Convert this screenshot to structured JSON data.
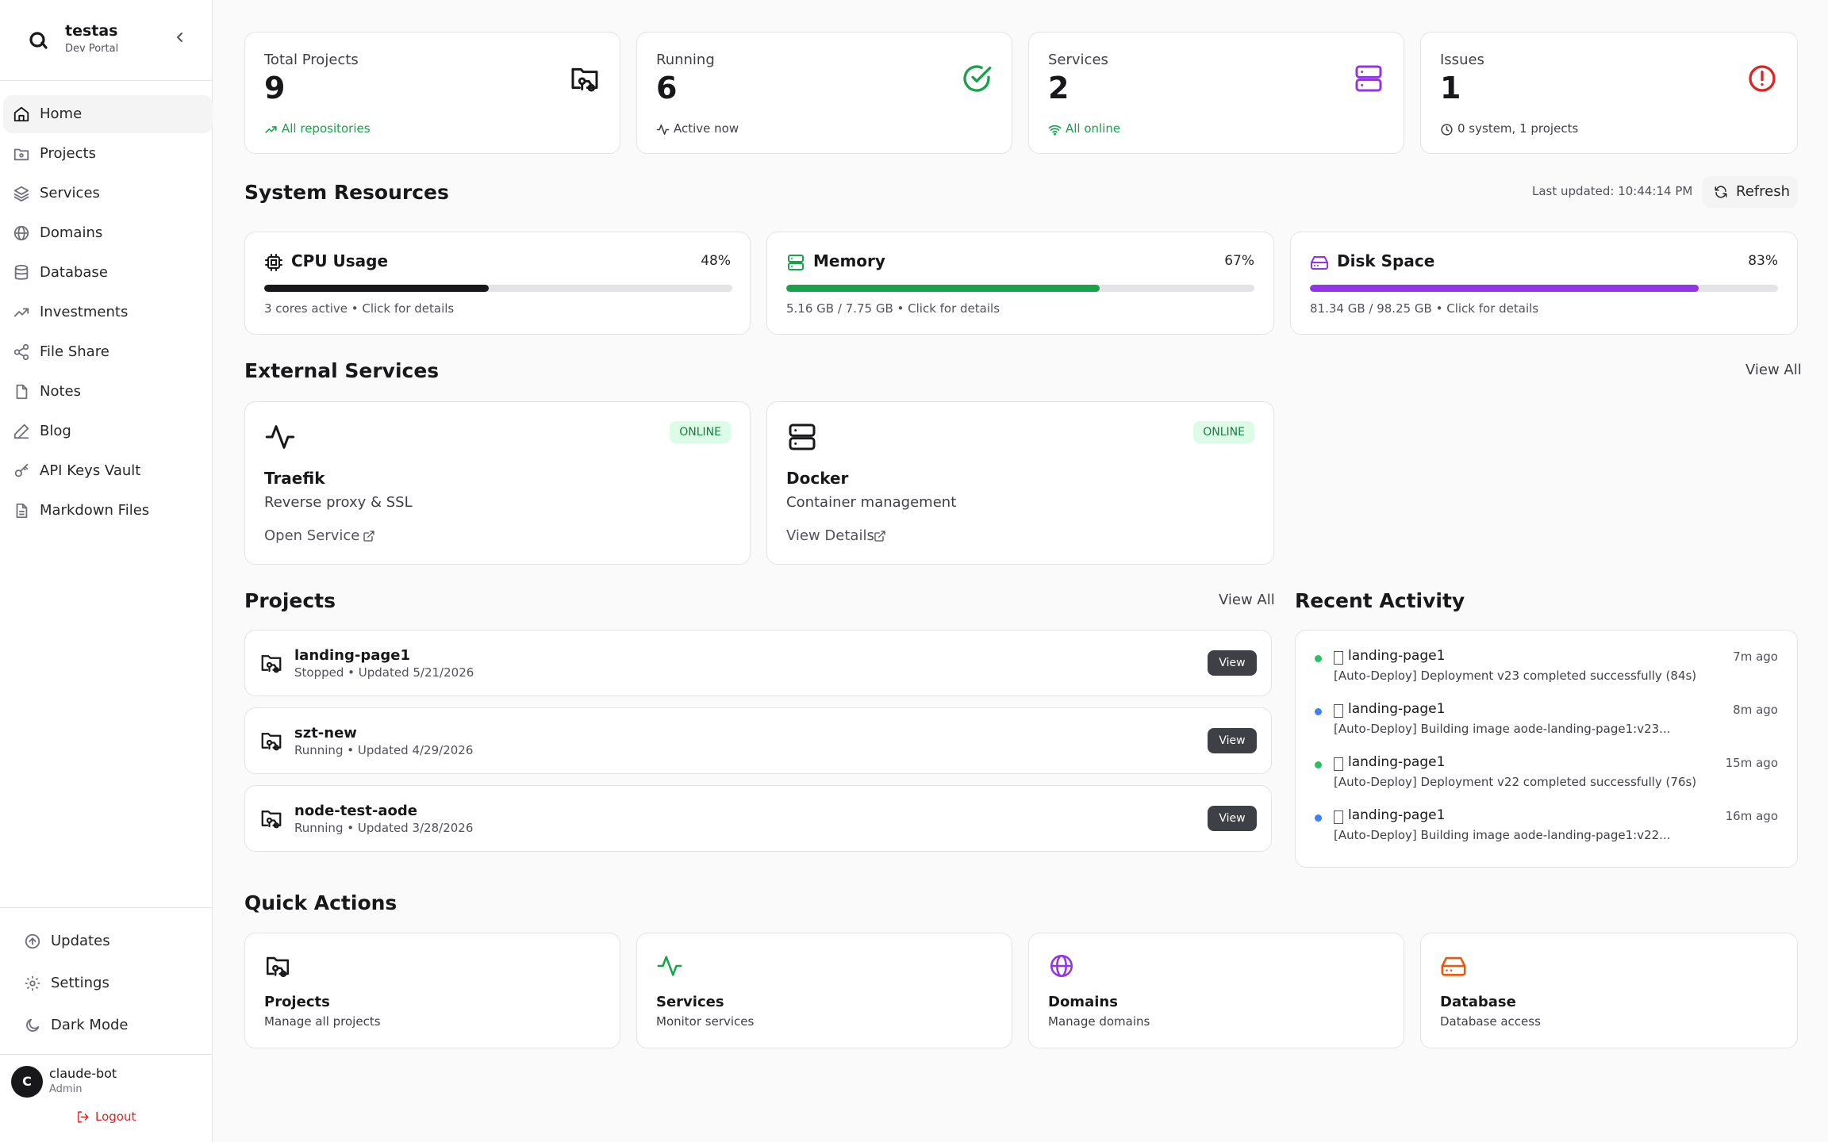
{
  "sidebar": {
    "brand_name": "testas",
    "brand_sub": "Dev Portal",
    "items": [
      {
        "label": "Home",
        "icon": "home-icon"
      },
      {
        "label": "Projects",
        "icon": "folder-git-icon"
      },
      {
        "label": "Services",
        "icon": "layers-icon"
      },
      {
        "label": "Domains",
        "icon": "globe-icon"
      },
      {
        "label": "Database",
        "icon": "database-icon"
      },
      {
        "label": "Investments",
        "icon": "trending-up-icon"
      },
      {
        "label": "File Share",
        "icon": "share-icon"
      },
      {
        "label": "Notes",
        "icon": "file-icon"
      },
      {
        "label": "Blog",
        "icon": "pen-icon"
      },
      {
        "label": "API Keys Vault",
        "icon": "key-icon"
      },
      {
        "label": "Markdown Files",
        "icon": "file-text-icon"
      }
    ],
    "bottom": [
      {
        "label": "Updates",
        "icon": "arrow-up-circle-icon"
      },
      {
        "label": "Settings",
        "icon": "gear-icon"
      },
      {
        "label": "Dark Mode",
        "icon": "moon-icon"
      }
    ],
    "user": {
      "initial": "C",
      "name": "claude-bot",
      "role": "Admin",
      "logout": "Logout"
    }
  },
  "stats": [
    {
      "label": "Total Projects",
      "value": "9",
      "sub": "All repositories",
      "sub_color": "#16a34a",
      "icon": "folder-git-icon",
      "icon_color": "#18181b"
    },
    {
      "label": "Running",
      "value": "6",
      "sub": "Active now",
      "sub_color": "#3f3f46",
      "icon": "check-circle-icon",
      "icon_color": "#16a34a"
    },
    {
      "label": "Services",
      "value": "2",
      "sub": "All online",
      "sub_color": "#16a34a",
      "icon": "server-icon",
      "icon_color": "#9333ea"
    },
    {
      "label": "Issues",
      "value": "1",
      "sub": "0 system, 1 projects",
      "sub_color": "#3f3f46",
      "icon": "alert-circle-icon",
      "icon_color": "#dc2626"
    }
  ],
  "resources": {
    "title": "System Resources",
    "last_updated": "Last updated: 10:44:14 PM",
    "refresh_label": "Refresh",
    "items": [
      {
        "title": "CPU Usage",
        "percent_label": "48%",
        "percent": 48,
        "detail": "3 cores active • Click for details",
        "color": "#18181b",
        "icon": "cpu-icon"
      },
      {
        "title": "Memory",
        "percent_label": "67%",
        "percent": 67,
        "detail": "5.16 GB / 7.75 GB • Click for details",
        "color": "#16a34a",
        "icon": "memory-icon"
      },
      {
        "title": "Disk Space",
        "percent_label": "83%",
        "percent": 83,
        "detail": "81.34 GB / 98.25 GB • Click for details",
        "color": "#9333ea",
        "icon": "hard-drive-icon"
      }
    ]
  },
  "external": {
    "title": "External Services",
    "view_all": "View All",
    "items": [
      {
        "name": "Traefik",
        "desc": "Reverse proxy & SSL",
        "status": "ONLINE",
        "link": "Open Service",
        "icon": "activity-icon"
      },
      {
        "name": "Docker",
        "desc": "Container management",
        "status": "ONLINE",
        "link": "View Details",
        "icon": "server-icon"
      }
    ]
  },
  "projects": {
    "title": "Projects",
    "view_all": "View All",
    "view_label": "View",
    "items": [
      {
        "name": "landing-page1",
        "meta": "Stopped • Updated 5/21/2026"
      },
      {
        "name": "szt-new",
        "meta": "Running • Updated 4/29/2026"
      },
      {
        "name": "node-test-aode",
        "meta": "Running • Updated 3/28/2026"
      }
    ]
  },
  "activity": {
    "title": "Recent Activity",
    "items": [
      {
        "title": "landing-page1",
        "desc": "[Auto-Deploy] Deployment v23 completed successfully (84s)",
        "time": "7m ago",
        "dot": "#22c55e"
      },
      {
        "title": "landing-page1",
        "desc": "[Auto-Deploy] Building image aode-landing-page1:v23...",
        "time": "8m ago",
        "dot": "#3b82f6"
      },
      {
        "title": "landing-page1",
        "desc": "[Auto-Deploy] Deployment v22 completed successfully (76s)",
        "time": "15m ago",
        "dot": "#22c55e"
      },
      {
        "title": "landing-page1",
        "desc": "[Auto-Deploy] Building image aode-landing-page1:v22...",
        "time": "16m ago",
        "dot": "#3b82f6"
      }
    ]
  },
  "quick_actions": {
    "title": "Quick Actions",
    "items": [
      {
        "title": "Projects",
        "desc": "Manage all projects",
        "icon": "folder-git-icon",
        "color": "#18181b"
      },
      {
        "title": "Services",
        "desc": "Monitor services",
        "icon": "activity-icon",
        "color": "#16a34a"
      },
      {
        "title": "Domains",
        "desc": "Manage domains",
        "icon": "globe-icon",
        "color": "#9333ea"
      },
      {
        "title": "Database",
        "desc": "Database access",
        "icon": "hard-drive-icon",
        "color": "#ea580c"
      }
    ]
  }
}
